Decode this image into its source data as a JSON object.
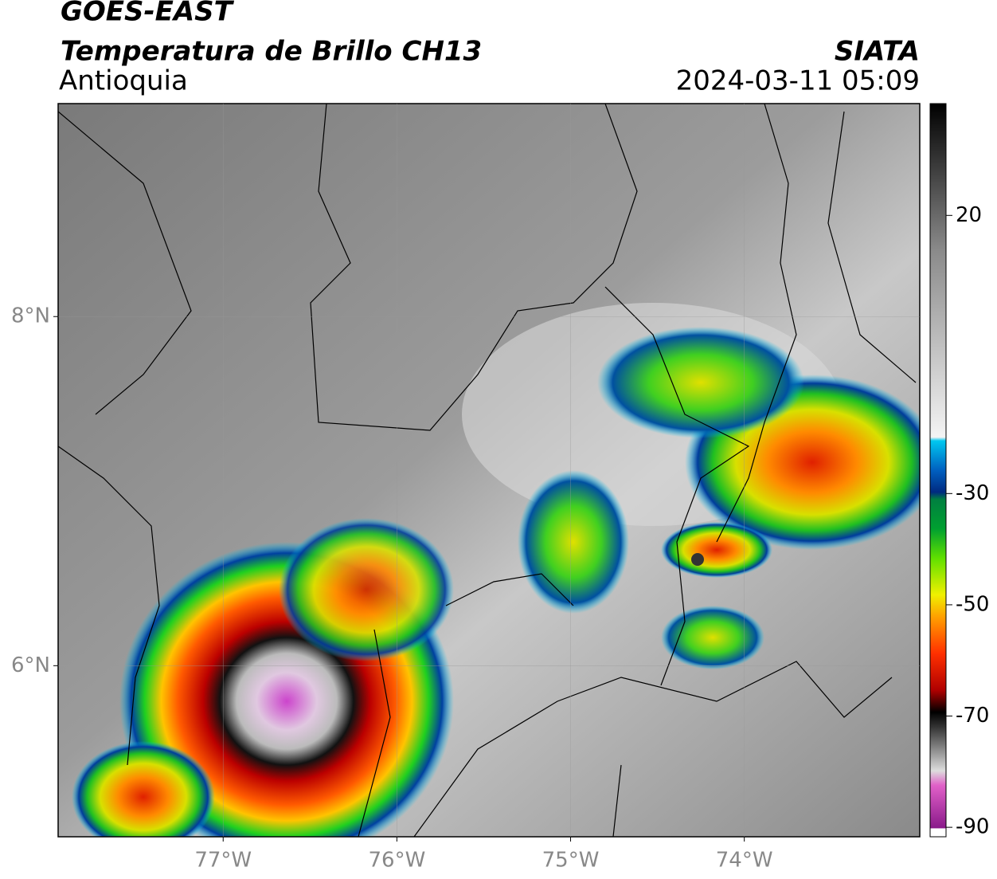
{
  "header": {
    "title": "GOES-EAST",
    "subtitle": "Temperatura de Brillo CH13",
    "region": "Antioquia",
    "source": "SIATA",
    "datetime": "2024-03-11 05:09"
  },
  "map": {
    "xlim": [
      -77.95,
      -72.99
    ],
    "ylim": [
      5.02,
      9.22
    ],
    "xticks": [
      {
        "value": -77,
        "label": "77°W"
      },
      {
        "value": -76,
        "label": "76°W"
      },
      {
        "value": -75,
        "label": "75°W"
      },
      {
        "value": -74,
        "label": "74°W"
      }
    ],
    "yticks": [
      {
        "value": 8,
        "label": "8°N"
      },
      {
        "value": 6,
        "label": "6°N"
      }
    ],
    "grid": true
  },
  "colorbar": {
    "lim": [
      -91.7,
      40.1
    ],
    "ticks": [
      20,
      -30,
      -50,
      -70,
      -90
    ]
  }
}
